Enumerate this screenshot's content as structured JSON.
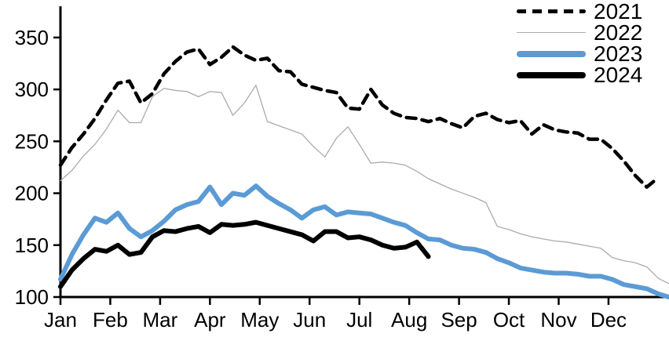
{
  "chart_data": {
    "type": "line",
    "title": "",
    "xlabel": "",
    "ylabel": "",
    "x_axis": {
      "tick_labels": [
        "Jan",
        "Feb",
        "Mar",
        "Apr",
        "May",
        "Jun",
        "Jul",
        "Aug",
        "Sep",
        "Oct",
        "Nov",
        "Dec"
      ],
      "unit": "weekly observations across one year"
    },
    "y_axis": {
      "ticks": [
        100,
        150,
        200,
        250,
        300,
        350
      ],
      "range": [
        100,
        380
      ],
      "grid": false
    },
    "legend": {
      "position": "top-right",
      "entries": [
        "2021",
        "2022",
        "2023",
        "2024"
      ]
    },
    "series": [
      {
        "name": "2022",
        "style": "thin-solid",
        "color": "#ababab",
        "width": 1.3,
        "x_weeks": [
          0,
          1,
          2,
          3,
          4,
          5,
          6,
          7,
          8,
          9,
          10,
          11,
          12,
          13,
          14,
          15,
          16,
          17,
          18,
          19,
          20,
          21,
          22,
          23,
          24,
          25,
          26,
          27,
          28,
          29,
          30,
          31,
          32,
          33,
          34,
          35,
          36,
          37,
          38,
          39,
          40,
          41,
          42,
          43,
          44,
          45,
          46,
          47,
          48,
          49,
          50,
          51,
          52,
          52.9
        ],
        "values": [
          212,
          222,
          236,
          247,
          262,
          280,
          268,
          268,
          293,
          301,
          299,
          298,
          293,
          298,
          297,
          275,
          287,
          304,
          269,
          265,
          261,
          257,
          245,
          235,
          253,
          264,
          247,
          229,
          230,
          229,
          227,
          221,
          214,
          209,
          204,
          200,
          196,
          191,
          168,
          165,
          161,
          158,
          156,
          154,
          153,
          151,
          149,
          147,
          138,
          135,
          133,
          129,
          118,
          113
        ]
      },
      {
        "name": "2021",
        "style": "dashed",
        "color": "#000000",
        "width": 4.5,
        "dash": "12 8",
        "x_weeks": [
          0,
          1,
          2,
          3,
          4,
          5,
          6,
          7,
          8,
          9,
          10,
          11,
          12,
          13,
          14,
          15,
          16,
          17,
          18,
          19,
          20,
          21,
          22,
          23,
          24,
          25,
          26,
          27,
          28,
          29,
          30,
          31,
          32,
          33,
          34,
          35,
          36,
          37,
          38,
          39,
          40,
          41,
          42,
          43,
          44,
          45,
          46,
          47,
          48,
          49,
          50,
          51,
          52
        ],
        "values": [
          227,
          244,
          257,
          272,
          290,
          306,
          308,
          287,
          296,
          315,
          327,
          336,
          339,
          324,
          331,
          341,
          333,
          328,
          330,
          318,
          317,
          305,
          302,
          299,
          297,
          282,
          281,
          300,
          285,
          277,
          273,
          272,
          269,
          272,
          267,
          263,
          274,
          277,
          271,
          268,
          270,
          257,
          266,
          261,
          259,
          258,
          252,
          252,
          243,
          231,
          217,
          206,
          215
        ]
      },
      {
        "name": "2023",
        "style": "thick-solid",
        "color": "#5b9bd5",
        "width": 6,
        "x_weeks": [
          0,
          1,
          2,
          3,
          4,
          5,
          6,
          7,
          8,
          9,
          10,
          11,
          12,
          13,
          14,
          15,
          16,
          17,
          18,
          19,
          20,
          21,
          22,
          23,
          24,
          25,
          26,
          27,
          28,
          29,
          30,
          31,
          32,
          33,
          34,
          35,
          36,
          37,
          38,
          39,
          40,
          41,
          42,
          43,
          44,
          45,
          46,
          47,
          48,
          49,
          50,
          51,
          52,
          52.9
        ],
        "values": [
          117,
          141,
          160,
          176,
          172,
          181,
          166,
          158,
          164,
          173,
          184,
          189,
          192,
          206,
          189,
          200,
          198,
          207,
          197,
          190,
          184,
          176,
          184,
          187,
          179,
          182,
          181,
          180,
          176,
          172,
          169,
          162,
          156,
          155,
          150,
          147,
          146,
          143,
          137,
          133,
          128,
          126,
          124,
          123,
          123,
          122,
          120,
          120,
          117,
          112,
          110,
          108,
          103,
          100
        ]
      },
      {
        "name": "2024",
        "style": "thick-solid",
        "color": "#000000",
        "width": 6,
        "x_weeks": [
          0,
          1,
          2,
          3,
          4,
          5,
          6,
          7,
          8,
          9,
          10,
          11,
          12,
          13,
          14,
          15,
          16,
          17,
          18,
          19,
          20,
          21,
          22,
          23,
          24,
          25,
          26,
          27,
          28,
          29,
          30,
          31,
          32
        ],
        "values": [
          110,
          126,
          137,
          146,
          144,
          150,
          141,
          143,
          158,
          164,
          163,
          166,
          168,
          162,
          170,
          169,
          170,
          172,
          169,
          166,
          163,
          160,
          154,
          163,
          163,
          157,
          158,
          155,
          150,
          147,
          148,
          153,
          139
        ]
      }
    ]
  }
}
